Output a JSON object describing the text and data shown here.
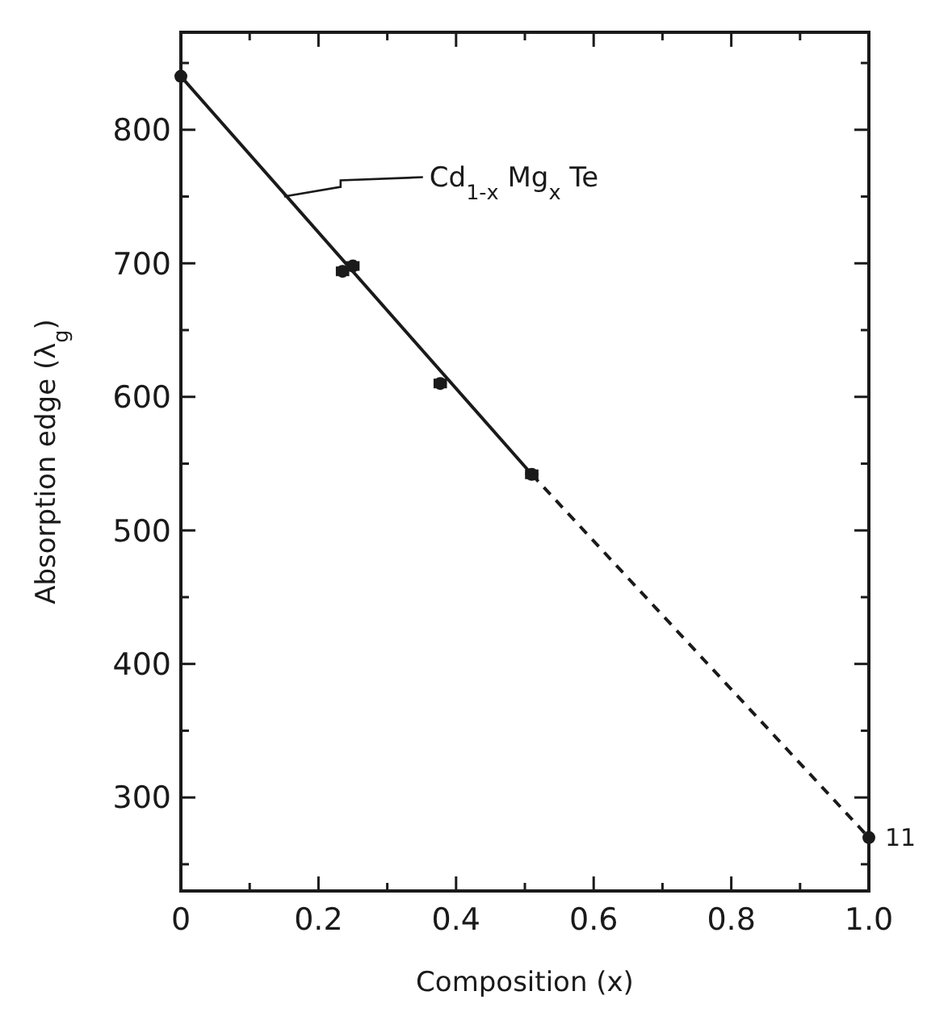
{
  "chart_data": {
    "type": "scatter",
    "xlabel": "Composition  (x)",
    "ylabel": "Absorption edge (λ$_{g}$)",
    "xlim": [
      0,
      1.0
    ],
    "ylim": [
      230,
      873
    ],
    "xticks": [
      0,
      {
        "value": 0.1,
        "label": null
      },
      {
        "value": 0.2,
        "label": "0.2"
      },
      {
        "value": 0.3,
        "label": null
      },
      {
        "value": 0.4,
        "label": "0.4"
      },
      {
        "value": 0.5,
        "label": null
      },
      {
        "value": 0.6,
        "label": "0.6"
      },
      {
        "value": 0.7,
        "label": null
      },
      {
        "value": 0.8,
        "label": "0.8"
      },
      {
        "value": 0.9,
        "label": null
      },
      {
        "value": 1.0,
        "label": "1.0"
      }
    ],
    "yticks": [
      {
        "value": 250,
        "label": null
      },
      300,
      {
        "value": 350,
        "label": null
      },
      400,
      {
        "value": 450,
        "label": null
      },
      500,
      {
        "value": 550,
        "label": null
      },
      600,
      {
        "value": 650,
        "label": null
      },
      700,
      {
        "value": 750,
        "label": null
      },
      800,
      {
        "value": 850,
        "label": null
      }
    ],
    "grid": false,
    "series": [
      {
        "marker": "circle",
        "color": "#1a1a1a",
        "x": [
          0,
          0.235,
          0.25,
          0.377,
          0.51,
          1.0
        ],
        "values": [
          840,
          694,
          698,
          610,
          542,
          270
        ],
        "xerrors": [
          null,
          0.008,
          0.008,
          0.008,
          0.008,
          null
        ]
      },
      {
        "type": "line",
        "color": "#1a1a1a",
        "line_style": "solid",
        "x": [
          0,
          0.51
        ],
        "values": [
          840,
          542
        ]
      },
      {
        "type": "line",
        "color": "#1a1a1a",
        "line_style": "dashed",
        "x": [
          0.51,
          1.0
        ],
        "values": [
          542,
          270
        ]
      }
    ],
    "annotations": [
      {
        "text": "Cd$_{1-x}$ Mg$_{x}$ Te",
        "x": 0.15,
        "y": 750
      },
      {
        "text": "11",
        "x": 1.0,
        "y": 270
      }
    ]
  }
}
